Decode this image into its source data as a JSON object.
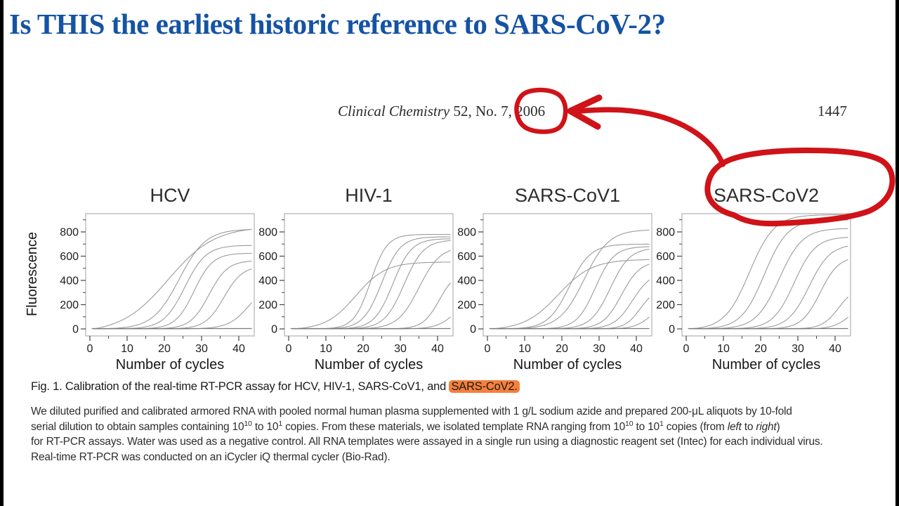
{
  "slide": {
    "title": "Is THIS the earliest historic reference to SARS-CoV-2?"
  },
  "paper": {
    "journal_italic": "Clinical Chemistry",
    "issue": " 52, No. 7, ",
    "year": "2006",
    "page_number": "1447",
    "caption_segments": [
      {
        "t": "Fig. 1. Calibration of the real-time RT-PCR assay for HCV, HIV-1, SARS-CoV1, and "
      },
      {
        "t": "SARS-CoV2.",
        "style": "highlight"
      }
    ],
    "body_lines": [
      [
        {
          "t": "We diluted purified and calibrated armored RNA with pooled normal human plasma supplemented with 1 g/L sodium azide and prepared 200-μL aliquots by 10-fold"
        }
      ],
      [
        {
          "t": "serial dilution to obtain samples containing 10"
        },
        {
          "t": "10",
          "style": "sup"
        },
        {
          "t": " to 10"
        },
        {
          "t": "1",
          "style": "sup"
        },
        {
          "t": " copies. From these materials, we isolated template RNA ranging from 10"
        },
        {
          "t": "10",
          "style": "sup"
        },
        {
          "t": " to 10"
        },
        {
          "t": "1",
          "style": "sup"
        },
        {
          "t": " copies (from "
        },
        {
          "t": "left",
          "style": "italic"
        },
        {
          "t": " to "
        },
        {
          "t": "right",
          "style": "italic"
        },
        {
          "t": ")"
        }
      ],
      [
        {
          "t": "for RT-PCR assays. Water was used as a negative control. All RNA templates were assayed in a single run using a diagnostic reagent set (Intec) for each individual virus."
        }
      ],
      [
        {
          "t": "Real-time RT-PCR was conducted on an iCycler iQ thermal cycler (Bio-Rad)."
        }
      ]
    ]
  },
  "chart_data": {
    "type": "line",
    "description": "Real-time RT-PCR amplification curves; 10-fold serial dilutions from 10^10 to 10^1 RNA copies (left to right) plus a flat negative-control baseline in each panel. Curves given as sigmoid parameters: mid = midpoint cycle, k = steepness, max = plateau fluorescence.",
    "xlabel": "Number of cycles",
    "ylabel": "Fluorescence",
    "x_ticks": [
      0,
      10,
      20,
      30,
      40
    ],
    "x_minor_ticks": [
      5,
      15,
      25,
      35
    ],
    "y_ticks": [
      0,
      200,
      400,
      600,
      800
    ],
    "y_minor_ticks": [
      100,
      300,
      500,
      700,
      900
    ],
    "xlim": [
      0,
      44
    ],
    "ylim": [
      -58,
      962
    ],
    "grid": false,
    "legend": "none",
    "panels": [
      {
        "title": "HCV",
        "curves": [
          {
            "mid": 21,
            "k": 0.16,
            "max": 880
          },
          {
            "mid": 24,
            "k": 0.28,
            "max": 825
          },
          {
            "mid": 25.5,
            "k": 0.35,
            "max": 690
          },
          {
            "mid": 28,
            "k": 0.4,
            "max": 625
          },
          {
            "mid": 32,
            "k": 0.4,
            "max": 565
          },
          {
            "mid": 36,
            "k": 0.4,
            "max": 520
          },
          {
            "mid": 43,
            "k": 0.35,
            "max": 400
          }
        ]
      },
      {
        "title": "HIV-1",
        "curves": [
          {
            "mid": 18,
            "k": 0.25,
            "max": 560
          },
          {
            "mid": 22,
            "k": 0.45,
            "max": 780
          },
          {
            "mid": 25,
            "k": 0.4,
            "max": 760
          },
          {
            "mid": 28,
            "k": 0.4,
            "max": 745
          },
          {
            "mid": 31,
            "k": 0.38,
            "max": 735
          },
          {
            "mid": 35,
            "k": 0.35,
            "max": 680
          },
          {
            "mid": 40.5,
            "k": 0.45,
            "max": 480
          },
          {
            "mid": 45,
            "k": 0.4,
            "max": 280
          }
        ]
      },
      {
        "title": "SARS-CoV1",
        "curves": [
          {
            "mid": 19,
            "k": 0.22,
            "max": 585
          },
          {
            "mid": 22,
            "k": 0.35,
            "max": 700
          },
          {
            "mid": 26,
            "k": 0.3,
            "max": 820
          },
          {
            "mid": 29,
            "k": 0.4,
            "max": 680
          },
          {
            "mid": 33,
            "k": 0.38,
            "max": 670
          },
          {
            "mid": 36,
            "k": 0.4,
            "max": 560
          },
          {
            "mid": 39,
            "k": 0.4,
            "max": 470
          },
          {
            "mid": 41,
            "k": 0.5,
            "max": 330
          },
          {
            "mid": 44,
            "k": 0.45,
            "max": 220
          }
        ]
      },
      {
        "title": "SARS-CoV2",
        "curves": [
          {
            "mid": 17,
            "k": 0.3,
            "max": 950
          },
          {
            "mid": 21,
            "k": 0.32,
            "max": 900
          },
          {
            "mid": 25,
            "k": 0.32,
            "max": 830
          },
          {
            "mid": 29,
            "k": 0.35,
            "max": 760
          },
          {
            "mid": 33,
            "k": 0.35,
            "max": 700
          },
          {
            "mid": 36,
            "k": 0.4,
            "max": 600
          },
          {
            "mid": 41,
            "k": 0.45,
            "max": 350
          },
          {
            "mid": 44,
            "k": 0.45,
            "max": 220
          }
        ]
      }
    ],
    "negative_control": "flat baseline at fluorescence 0 in every panel"
  },
  "annotations": {
    "circled_text": "2006",
    "blob_circled_text": "SARS-CoV2",
    "arrow": "from SARS-CoV2 blob pointing to circled 2006"
  },
  "colors": {
    "title_blue": "#1553a3",
    "annotation_red": "#cf1318",
    "highlight_orange": "#f5803c",
    "curve_gray": "#9b9b9b"
  }
}
